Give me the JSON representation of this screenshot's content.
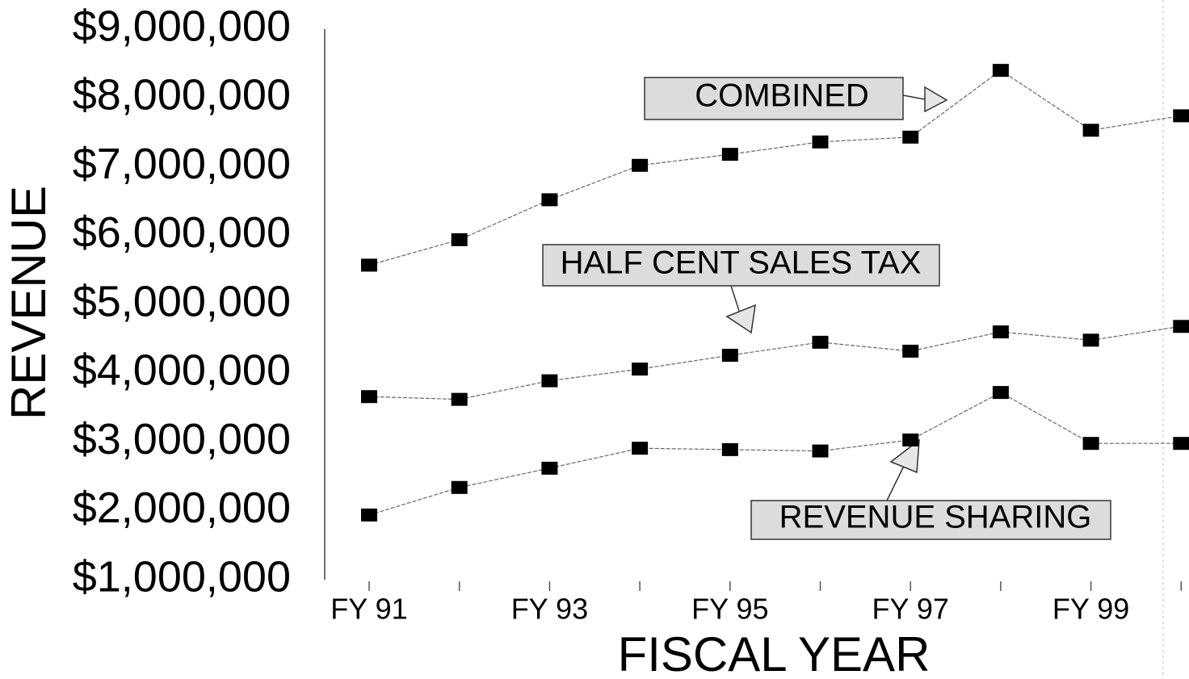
{
  "chart_data": {
    "type": "line",
    "x_label": "FISCAL YEAR",
    "y_label": "REVENUE",
    "categories": [
      "FY 91",
      null,
      "FY 93",
      null,
      "FY 95",
      null,
      "FY 97",
      null,
      "FY 99",
      null
    ],
    "series": [
      {
        "name": "COMBINED",
        "color": "#000000",
        "values": [
          5570000,
          5940000,
          6520000,
          7020000,
          7180000,
          7360000,
          7430000,
          8400000,
          7530000,
          7740000
        ]
      },
      {
        "name": "HALF CENT SALES TAX",
        "color": "#000000",
        "values": [
          3660000,
          3620000,
          3890000,
          4060000,
          4260000,
          4450000,
          4320000,
          4600000,
          4480000,
          4680000
        ]
      },
      {
        "name": "REVENUE SHARING",
        "color": "#000000",
        "values": [
          1940000,
          2340000,
          2620000,
          2910000,
          2890000,
          2870000,
          3030000,
          3720000,
          2980000,
          2980000
        ]
      }
    ],
    "ylim": [
      1000000,
      9000000
    ],
    "yticks": [
      {
        "value": 1000000,
        "label": "$1,000,000"
      },
      {
        "value": 2000000,
        "label": "$2,000,000"
      },
      {
        "value": 3000000,
        "label": "$3,000,000"
      },
      {
        "value": 4000000,
        "label": "$4,000,000"
      },
      {
        "value": 5000000,
        "label": "$5,000,000"
      },
      {
        "value": 6000000,
        "label": "$6,000,000"
      },
      {
        "value": 7000000,
        "label": "$7,000,000"
      },
      {
        "value": 8000000,
        "label": "$8,000,000"
      },
      {
        "value": 9000000,
        "label": "$9,000,000"
      }
    ],
    "grid": false
  }
}
